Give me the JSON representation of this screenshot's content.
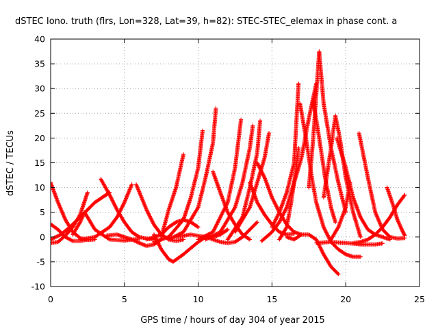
{
  "chart_data": {
    "type": "scatter",
    "title": "dSTEC Iono. truth (flrs, Lon=328, Lat=39, h=82): STEC-STEC_elemax in phase cont. a",
    "xlabel": "GPS time / hours of day 304 of year 2015",
    "ylabel": "dSTEC  / TECUs",
    "xlim": [
      0,
      25
    ],
    "ylim": [
      -10,
      40
    ],
    "x_ticks": [
      "0",
      "5",
      "10",
      "15",
      "20",
      "25"
    ],
    "y_ticks": [
      "-10",
      "-5",
      "0",
      "5",
      "10",
      "15",
      "20",
      "25",
      "30",
      "35",
      "40"
    ],
    "grid": true,
    "marker": "+",
    "series_color": "#ff0000",
    "series": [
      {
        "x": [
          0.0,
          0.5,
          1.0,
          1.5,
          2.0,
          2.5,
          3.0
        ],
        "y": [
          11.0,
          7.0,
          3.5,
          1.0,
          -0.2,
          -0.6,
          -0.5
        ]
      },
      {
        "x": [
          0.0,
          0.5,
          1.0,
          1.5,
          2.0,
          2.5
        ],
        "y": [
          -1.2,
          -1.0,
          0.3,
          2.0,
          4.5,
          9.0
        ]
      },
      {
        "x": [
          0.0,
          0.5,
          1.0,
          1.5,
          2.0,
          2.5
        ],
        "y": [
          2.6,
          1.5,
          0.0,
          -0.8,
          -0.8,
          -0.5
        ]
      },
      {
        "x": [
          0.0,
          0.7,
          1.3,
          2.0,
          2.5,
          3.0,
          3.5,
          4.0
        ],
        "y": [
          -0.5,
          0.5,
          2.0,
          4.0,
          5.5,
          7.0,
          8.0,
          9.0
        ]
      },
      {
        "x": [
          1.5,
          2.0,
          2.3,
          3.0,
          4.0,
          5.0,
          6.0
        ],
        "y": [
          0.5,
          3.0,
          5.0,
          1.5,
          -0.5,
          -0.7,
          -0.4
        ]
      },
      {
        "x": [
          3.4,
          4.0,
          4.5,
          5.0,
          5.5,
          6.0,
          6.5,
          7.0
        ],
        "y": [
          11.7,
          8.5,
          5.5,
          3.0,
          1.0,
          0.0,
          -0.3,
          -0.5
        ]
      },
      {
        "x": [
          2.0,
          3.0,
          4.0,
          4.5,
          5.0,
          5.5
        ],
        "y": [
          -0.5,
          0.0,
          2.0,
          4.0,
          7.0,
          10.6
        ]
      },
      {
        "x": [
          3.8,
          4.5,
          5.0,
          5.5,
          6.0,
          6.5,
          7.0,
          7.5
        ],
        "y": [
          0.3,
          0.5,
          0.0,
          -0.5,
          -1.2,
          -1.8,
          -1.5,
          -0.5
        ]
      },
      {
        "x": [
          5.8,
          6.5,
          7.0,
          7.5,
          8.0,
          8.5,
          9.0
        ],
        "y": [
          10.6,
          5.5,
          2.5,
          0.5,
          -0.5,
          -0.8,
          -0.5
        ]
      },
      {
        "x": [
          7.0,
          7.5,
          8.0,
          8.3,
          9.0,
          10.0,
          10.5
        ],
        "y": [
          0.5,
          -2.5,
          -4.5,
          -5.0,
          -3.5,
          -1.0,
          0.0
        ]
      },
      {
        "x": [
          6.5,
          7.5,
          8.0,
          8.5,
          9.0,
          9.5,
          10.0
        ],
        "y": [
          -0.5,
          0.5,
          2.0,
          3.0,
          3.5,
          3.0,
          2.0
        ]
      },
      {
        "x": [
          7.5,
          8.0,
          8.5,
          9.0
        ],
        "y": [
          0.0,
          5.5,
          10.0,
          16.7
        ]
      },
      {
        "x": [
          7.0,
          8.0,
          9.0,
          9.5,
          10.0,
          10.3
        ],
        "y": [
          -1.0,
          0.0,
          3.5,
          8.0,
          14.0,
          21.5
        ]
      },
      {
        "x": [
          8.0,
          9.0,
          10.0,
          10.5,
          11.0,
          11.2
        ],
        "y": [
          -0.5,
          1.0,
          6.0,
          12.0,
          19.0,
          26.0
        ]
      },
      {
        "x": [
          8.5,
          9.5,
          10.5,
          11.0,
          11.5,
          12.0
        ],
        "y": [
          0.0,
          0.5,
          0.0,
          0.0,
          0.5,
          1.5
        ]
      },
      {
        "x": [
          11.0,
          11.5,
          12.0,
          12.5,
          13.0,
          13.5
        ],
        "y": [
          13.2,
          9.0,
          5.0,
          2.5,
          0.5,
          -0.5
        ]
      },
      {
        "x": [
          10.0,
          11.0,
          12.0,
          12.5,
          12.9
        ],
        "y": [
          -0.5,
          1.0,
          7.0,
          14.0,
          23.7
        ]
      },
      {
        "x": [
          10.5,
          11.5,
          12.5,
          13.0,
          13.5,
          13.7
        ],
        "y": [
          -0.5,
          1.0,
          6.0,
          11.0,
          18.0,
          22.5
        ]
      },
      {
        "x": [
          12.0,
          13.0,
          13.5,
          14.0,
          14.2
        ],
        "y": [
          -0.5,
          4.0,
          10.0,
          17.0,
          23.5
        ]
      },
      {
        "x": [
          12.5,
          13.5,
          14.0,
          14.5,
          14.8
        ],
        "y": [
          1.0,
          6.0,
          11.0,
          16.0,
          21.0
        ]
      },
      {
        "x": [
          13.5,
          14.0,
          14.5,
          15.0,
          15.5,
          16.0,
          16.5
        ],
        "y": [
          11.0,
          7.0,
          4.5,
          2.5,
          1.0,
          0.5,
          0.7
        ]
      },
      {
        "x": [
          14.0,
          14.5,
          15.0,
          15.5,
          16.0,
          16.5,
          17.0
        ],
        "y": [
          15.0,
          12.0,
          8.0,
          5.0,
          2.5,
          1.0,
          0.5
        ]
      },
      {
        "x": [
          14.3,
          15.0,
          15.5,
          16.0,
          16.5,
          17.0,
          17.5,
          18.0
        ],
        "y": [
          -0.8,
          1.0,
          3.0,
          6.0,
          11.0,
          16.0,
          24.0,
          31.0
        ]
      },
      {
        "x": [
          15.0,
          15.5,
          16.0,
          16.5,
          16.8
        ],
        "y": [
          2.0,
          5.0,
          9.0,
          15.0,
          31.0
        ]
      },
      {
        "x": [
          15.5,
          16.0,
          16.3,
          16.6,
          16.8
        ],
        "y": [
          -0.5,
          2.0,
          7.0,
          13.0,
          18.0
        ]
      },
      {
        "x": [
          16.0,
          16.5,
          17.0,
          17.5,
          18.0,
          18.5,
          19.0,
          19.5
        ],
        "y": [
          0.0,
          -0.5,
          0.5,
          0.5,
          -0.5,
          -3.5,
          -6.0,
          -7.5
        ]
      },
      {
        "x": [
          16.9,
          17.3,
          17.7,
          18.0,
          18.5,
          19.0,
          19.5,
          20.0,
          20.5,
          21.0
        ],
        "y": [
          27.0,
          20.0,
          12.0,
          7.0,
          2.0,
          -1.0,
          -2.5,
          -3.5,
          -4.0,
          -4.0
        ]
      },
      {
        "x": [
          17.5,
          17.8,
          18.2,
          18.5,
          19.0,
          19.5,
          20.0
        ],
        "y": [
          10.0,
          20.0,
          37.5,
          27.0,
          18.0,
          11.0,
          5.0
        ]
      },
      {
        "x": [
          17.8,
          18.2,
          18.6,
          19.0,
          19.3
        ],
        "y": [
          27.5,
          20.0,
          12.0,
          6.0,
          3.0
        ]
      },
      {
        "x": [
          18.5,
          19.0,
          19.3,
          19.6,
          20.0,
          20.5,
          21.0
        ],
        "y": [
          8.0,
          18.0,
          24.5,
          20.0,
          12.0,
          5.0,
          0.0
        ]
      },
      {
        "x": [
          19.4,
          20.0,
          20.5,
          21.0,
          21.5,
          22.0,
          22.5,
          23.0
        ],
        "y": [
          20.0,
          14.0,
          8.0,
          4.0,
          1.5,
          0.5,
          0.0,
          -0.5
        ]
      },
      {
        "x": [
          19.0,
          19.5,
          20.0,
          20.3
        ],
        "y": [
          -0.5,
          2.0,
          6.0,
          11.0
        ]
      },
      {
        "x": [
          20.9,
          21.5,
          22.0,
          22.5,
          23.0,
          23.5,
          24.0
        ],
        "y": [
          21.0,
          12.0,
          5.0,
          1.5,
          0.0,
          -0.3,
          -0.2
        ]
      },
      {
        "x": [
          20.5,
          21.0,
          21.5,
          22.0,
          22.5,
          23.0,
          23.5,
          24.0
        ],
        "y": [
          -1.2,
          -1.0,
          -0.5,
          0.5,
          2.0,
          4.0,
          6.5,
          8.5
        ]
      },
      {
        "x": [
          22.8,
          23.2,
          23.5,
          23.8,
          24.0
        ],
        "y": [
          10.0,
          6.5,
          3.5,
          1.5,
          0.3
        ]
      },
      {
        "x": [
          18.0,
          19.0,
          20.0,
          21.0,
          22.0,
          22.5
        ],
        "y": [
          -1.2,
          -1.0,
          -1.2,
          -1.5,
          -1.5,
          -1.3
        ]
      },
      {
        "x": [
          10.8,
          11.5,
          12.0,
          12.5,
          13.0,
          13.5,
          14.0
        ],
        "y": [
          -0.3,
          -1.0,
          -1.2,
          -1.0,
          0.0,
          1.5,
          3.0
        ]
      }
    ]
  }
}
